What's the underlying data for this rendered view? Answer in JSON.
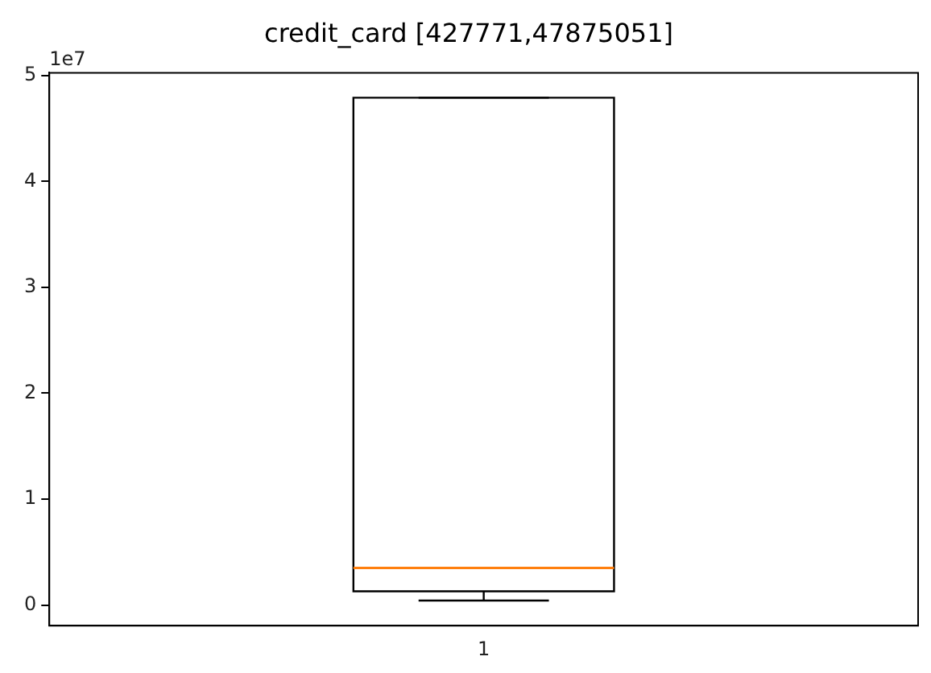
{
  "chart_data": {
    "type": "box",
    "title": "credit_card [427771,47875051]",
    "categories": [
      "1"
    ],
    "boxes": [
      {
        "low": 0.043,
        "q1": 0.13,
        "median": 0.35,
        "q3": 4.79,
        "high": 4.79
      }
    ],
    "color": "#000000",
    "ylim": [
      -0.194,
      5.025
    ],
    "yticks": [
      0,
      1,
      2,
      3,
      4,
      5
    ],
    "annotations": [
      "1e7"
    ],
    "grid": false,
    "legend": false
  }
}
